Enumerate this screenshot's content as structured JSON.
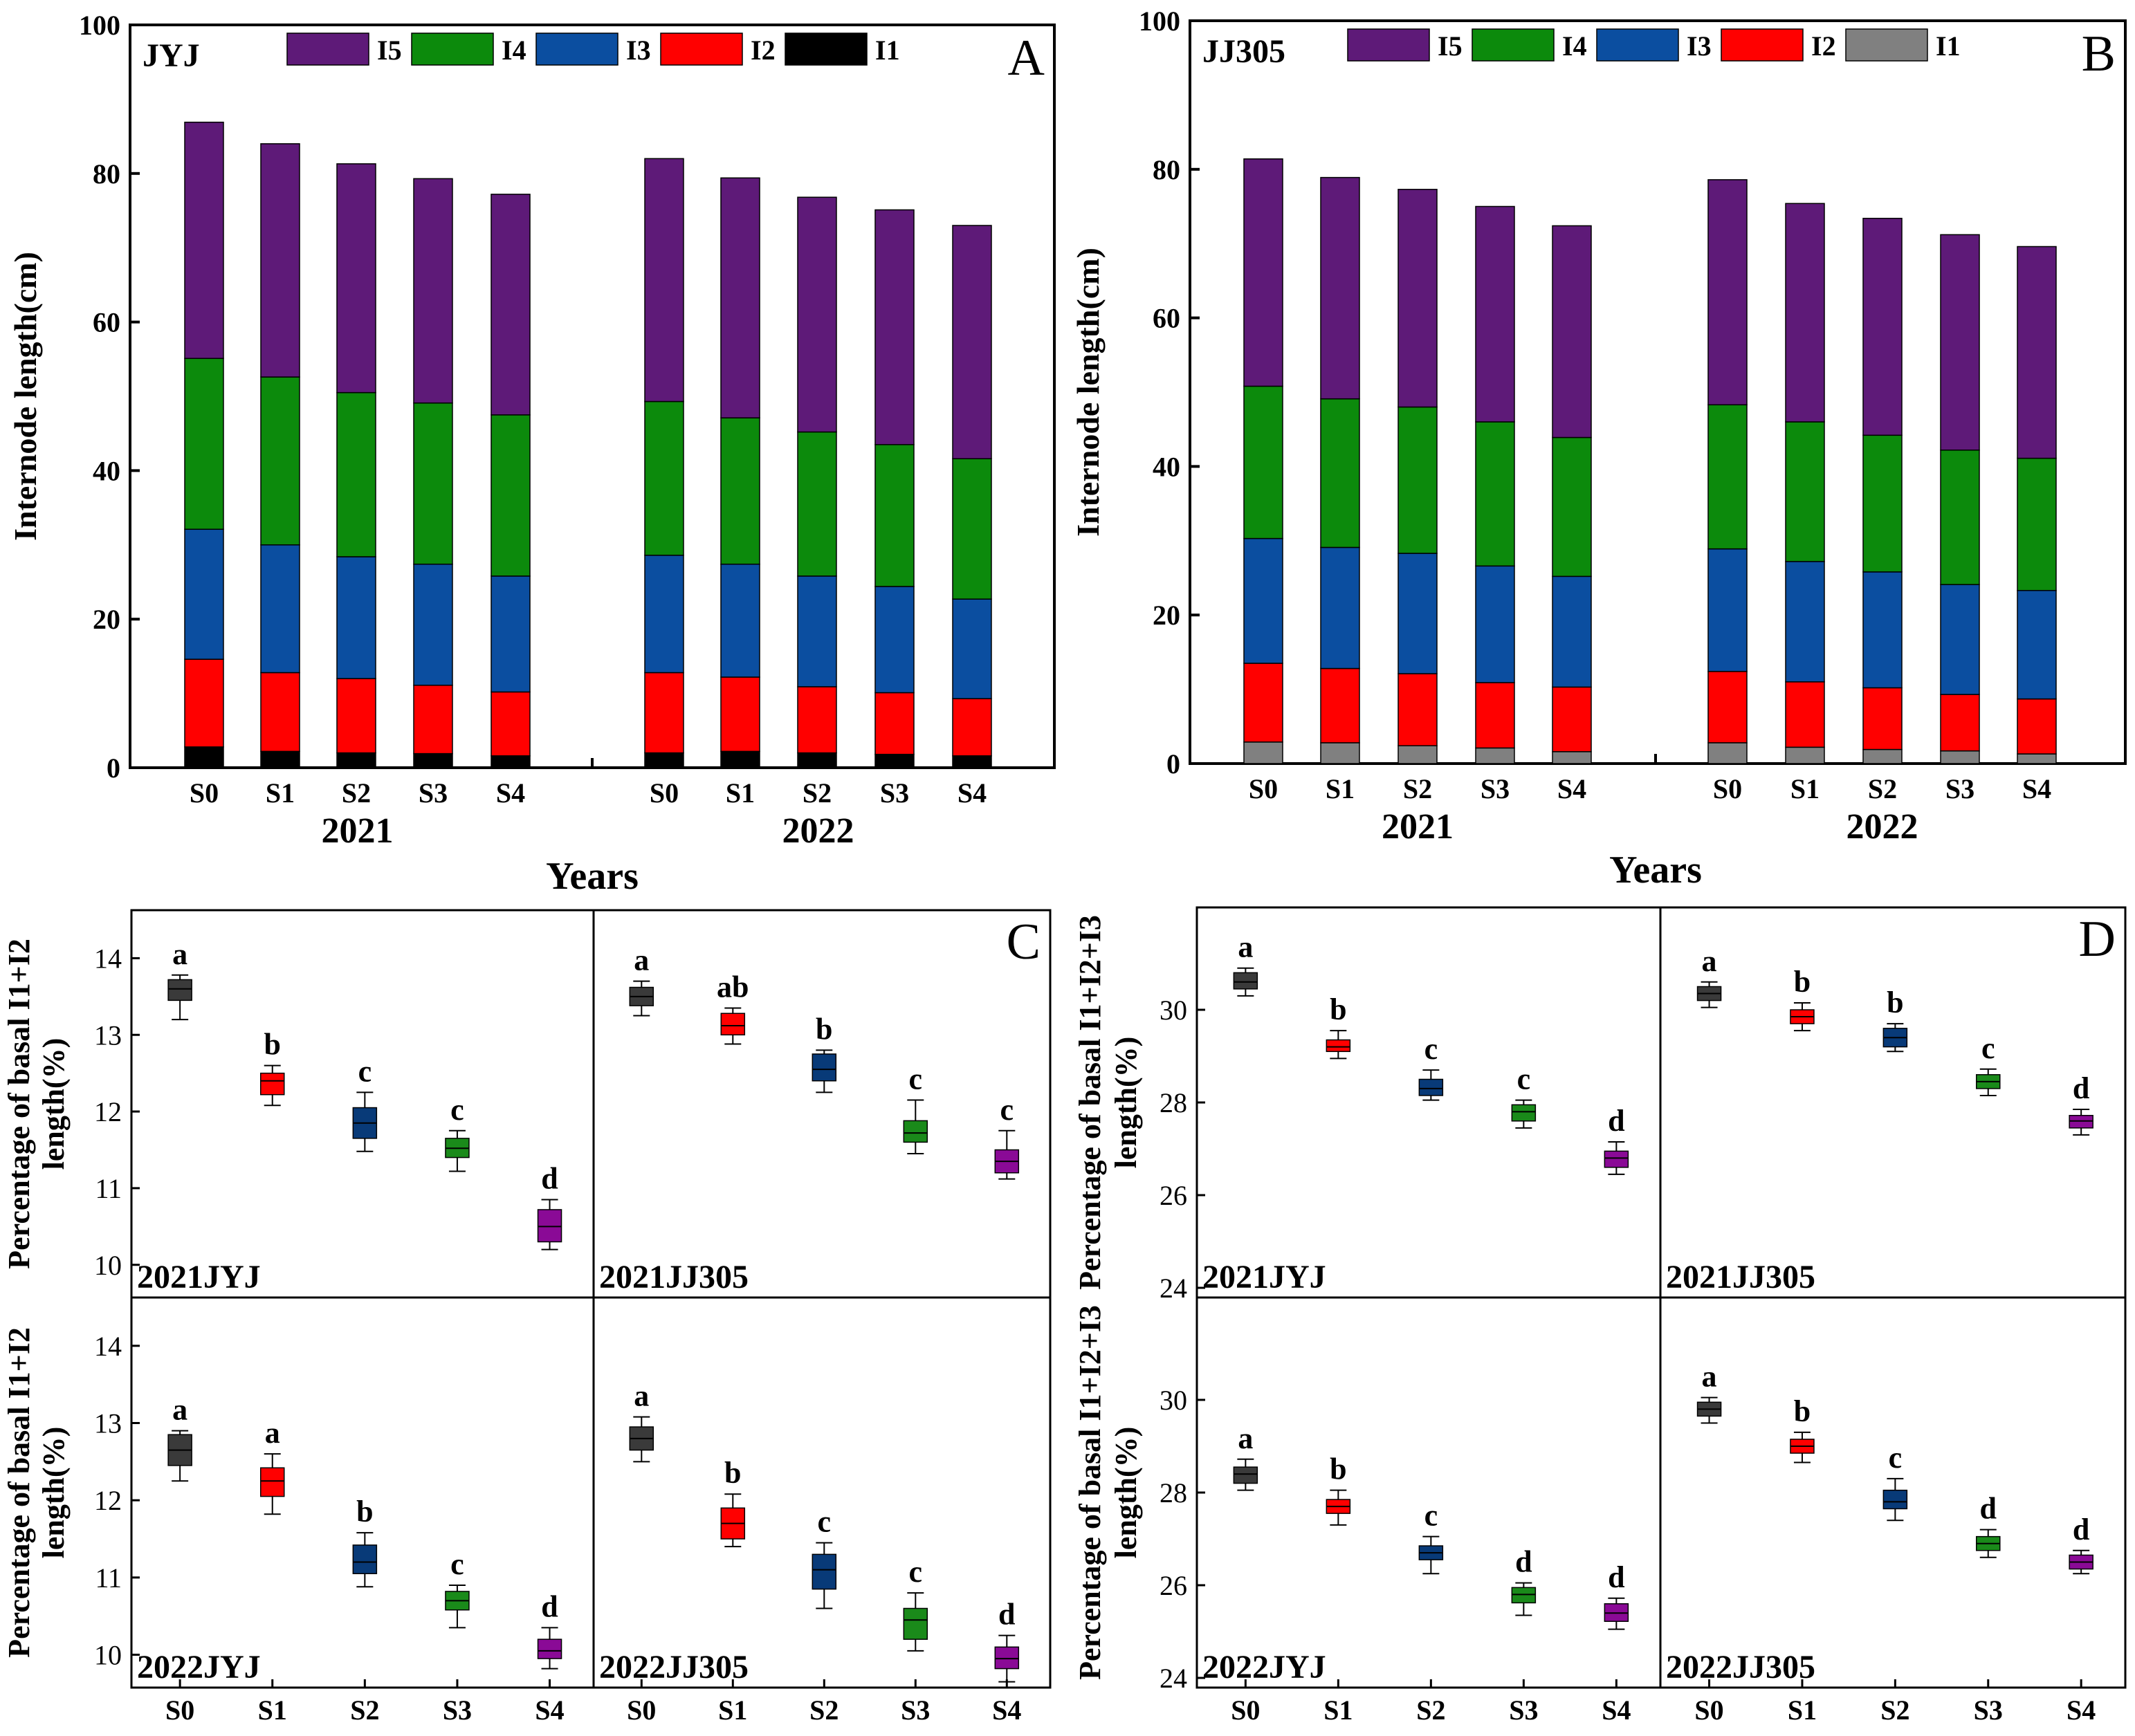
{
  "colors": {
    "I5": "#5e1a78",
    "I4": "#0c8a0c",
    "I3": "#0b4ea0",
    "I2": "#ff0000",
    "I1_A": "#000000",
    "I1_B": "#808080",
    "S0": "#3a3a3a",
    "S1": "#ff0000",
    "S2": "#083a78",
    "S3": "#1a8a1a",
    "S4": "#8a0a96"
  },
  "chart_data": [
    {
      "panel": "A",
      "type": "bar",
      "stacked": true,
      "tag": "JYJ",
      "ylabel": "Internode length(cm)",
      "xlabel": "Years",
      "ylim": [
        0,
        100
      ],
      "yticks": [
        "0",
        "20",
        "40",
        "60",
        "80",
        "100"
      ],
      "groups": [
        "2021",
        "2022"
      ],
      "categories": [
        "S0",
        "S1",
        "S2",
        "S3",
        "S4"
      ],
      "legend": [
        "I5",
        "I4",
        "I3",
        "I2",
        "I1"
      ],
      "series": [
        {
          "name": "I1",
          "values": [
            [
              2.8,
              2.2,
              2.0,
              1.9,
              1.6
            ],
            [
              2.0,
              2.2,
              2.0,
              1.8,
              1.6
            ]
          ]
        },
        {
          "name": "I2",
          "values": [
            [
              11.8,
              10.6,
              10.0,
              9.2,
              8.6
            ],
            [
              10.8,
              10.0,
              8.9,
              8.3,
              7.7
            ]
          ]
        },
        {
          "name": "I3",
          "values": [
            [
              17.5,
              17.2,
              16.4,
              16.3,
              15.6
            ],
            [
              15.8,
              15.2,
              14.9,
              14.3,
              13.4
            ]
          ]
        },
        {
          "name": "I4",
          "values": [
            [
              23.0,
              22.6,
              22.1,
              21.7,
              21.7
            ],
            [
              20.7,
              19.7,
              19.4,
              19.1,
              18.9
            ]
          ]
        },
        {
          "name": "I5",
          "values": [
            [
              31.8,
              31.4,
              30.8,
              30.2,
              29.7
            ],
            [
              32.7,
              32.3,
              31.6,
              31.6,
              31.4
            ]
          ]
        }
      ]
    },
    {
      "panel": "B",
      "type": "bar",
      "stacked": true,
      "tag": "JJ305",
      "ylabel": "Internode length(cm)",
      "xlabel": "Years",
      "ylim": [
        0,
        100
      ],
      "yticks": [
        "0",
        "20",
        "40",
        "60",
        "80",
        "100"
      ],
      "groups": [
        "2021",
        "2022"
      ],
      "categories": [
        "S0",
        "S1",
        "S2",
        "S3",
        "S4"
      ],
      "legend": [
        "I5",
        "I4",
        "I3",
        "I2",
        "I1"
      ],
      "series": [
        {
          "name": "I1",
          "values": [
            [
              2.9,
              2.8,
              2.4,
              2.1,
              1.6
            ],
            [
              2.8,
              2.2,
              1.9,
              1.7,
              1.3
            ]
          ]
        },
        {
          "name": "I2",
          "values": [
            [
              10.6,
              10.0,
              9.7,
              8.8,
              8.7
            ],
            [
              9.6,
              8.8,
              8.3,
              7.6,
              7.4
            ]
          ]
        },
        {
          "name": "I3",
          "values": [
            [
              16.8,
              16.3,
              16.2,
              15.7,
              14.9
            ],
            [
              16.5,
              16.2,
              15.6,
              14.8,
              14.6
            ]
          ]
        },
        {
          "name": "I4",
          "values": [
            [
              20.5,
              20.0,
              19.7,
              19.4,
              18.7
            ],
            [
              19.4,
              18.8,
              18.4,
              18.1,
              17.8
            ]
          ]
        },
        {
          "name": "I5",
          "values": [
            [
              30.6,
              29.8,
              29.3,
              29.0,
              28.5
            ],
            [
              30.3,
              29.4,
              29.2,
              29.0,
              28.5
            ]
          ]
        }
      ]
    },
    {
      "panel": "C",
      "type": "box",
      "ylabel": "Percentage of basal I1+I2 length(%)",
      "ylim": [
        9.7,
        14.5
      ],
      "yticks": [
        10,
        11,
        12,
        13,
        14
      ],
      "categories": [
        "S0",
        "S1",
        "S2",
        "S3",
        "S4"
      ],
      "subplots": [
        {
          "label": "2021JYJ",
          "medians": [
            13.6,
            12.4,
            11.85,
            11.52,
            10.5
          ],
          "q1": [
            13.45,
            12.22,
            11.65,
            11.4,
            10.3
          ],
          "q3": [
            13.72,
            12.5,
            12.05,
            11.65,
            10.72
          ],
          "min": [
            13.2,
            12.08,
            11.48,
            11.22,
            10.2
          ],
          "max": [
            13.78,
            12.6,
            12.25,
            11.75,
            10.85
          ],
          "letters": [
            "a",
            "b",
            "c",
            "c",
            "d"
          ]
        },
        {
          "label": "2021JJ305",
          "medians": [
            13.5,
            13.12,
            12.55,
            11.72,
            11.35
          ],
          "q1": [
            13.38,
            13.0,
            12.4,
            11.6,
            11.2
          ],
          "q3": [
            13.62,
            13.28,
            12.75,
            11.88,
            11.5
          ],
          "min": [
            13.25,
            12.88,
            12.25,
            11.45,
            11.12
          ],
          "max": [
            13.7,
            13.35,
            12.8,
            12.15,
            11.75
          ],
          "letters": [
            "a",
            "ab",
            "b",
            "c",
            "c"
          ]
        },
        {
          "label": "2022JYJ",
          "medians": [
            12.65,
            12.25,
            11.2,
            10.7,
            10.05
          ],
          "q1": [
            12.45,
            12.05,
            11.05,
            10.58,
            9.95
          ],
          "q3": [
            12.85,
            12.42,
            11.42,
            10.82,
            10.2
          ],
          "min": [
            12.25,
            11.82,
            10.88,
            10.35,
            9.82
          ],
          "max": [
            12.9,
            12.6,
            11.58,
            10.9,
            10.35
          ],
          "letters": [
            "a",
            "a",
            "b",
            "c",
            "d"
          ]
        },
        {
          "label": "2022JJ305",
          "medians": [
            12.8,
            11.7,
            11.1,
            10.45,
            9.95
          ],
          "q1": [
            12.65,
            11.5,
            10.85,
            10.2,
            9.82
          ],
          "q3": [
            12.95,
            11.9,
            11.3,
            10.6,
            10.1
          ],
          "min": [
            12.5,
            11.4,
            10.6,
            10.05,
            9.65
          ],
          "max": [
            13.08,
            12.08,
            11.45,
            10.8,
            10.25
          ],
          "letters": [
            "a",
            "b",
            "c",
            "c",
            "d"
          ]
        }
      ]
    },
    {
      "panel": "D",
      "type": "box",
      "ylabel": "Percentage of basal I1+I2+I3 length(%)",
      "ylim": [
        24,
        32
      ],
      "yticks": [
        24,
        26,
        28,
        30
      ],
      "categories": [
        "S0",
        "S1",
        "S2",
        "S3",
        "S4"
      ],
      "subplots": [
        {
          "label": "2021JYJ",
          "medians": [
            30.6,
            29.2,
            28.3,
            27.8,
            26.8
          ],
          "q1": [
            30.45,
            29.1,
            28.15,
            27.6,
            26.6
          ],
          "q3": [
            30.8,
            29.35,
            28.5,
            27.95,
            26.95
          ],
          "min": [
            30.3,
            28.95,
            28.05,
            27.45,
            26.45
          ],
          "max": [
            30.9,
            29.55,
            28.7,
            28.05,
            27.15
          ],
          "letters": [
            "a",
            "b",
            "c",
            "c",
            "d"
          ]
        },
        {
          "label": "2021JJ305",
          "medians": [
            30.35,
            29.85,
            29.4,
            28.45,
            27.6
          ],
          "q1": [
            30.2,
            29.7,
            29.2,
            28.3,
            27.45
          ],
          "q3": [
            30.5,
            30.0,
            29.6,
            28.6,
            27.72
          ],
          "min": [
            30.05,
            29.55,
            29.1,
            28.15,
            27.3
          ],
          "max": [
            30.6,
            30.15,
            29.7,
            28.72,
            27.85
          ],
          "letters": [
            "a",
            "b",
            "b",
            "c",
            "d"
          ]
        },
        {
          "label": "2022JYJ",
          "medians": [
            28.4,
            27.7,
            26.7,
            25.8,
            25.4
          ],
          "q1": [
            28.2,
            27.55,
            26.55,
            25.62,
            25.22
          ],
          "q3": [
            28.55,
            27.85,
            26.85,
            25.95,
            25.6
          ],
          "min": [
            28.05,
            27.3,
            26.25,
            25.35,
            25.05
          ],
          "max": [
            28.72,
            28.05,
            27.05,
            26.05,
            25.72
          ],
          "letters": [
            "a",
            "b",
            "c",
            "d",
            "d"
          ]
        },
        {
          "label": "2022JJ305",
          "medians": [
            29.8,
            29.0,
            27.8,
            26.9,
            26.5
          ],
          "q1": [
            29.65,
            28.85,
            27.65,
            26.75,
            26.35
          ],
          "q3": [
            29.95,
            29.15,
            28.05,
            27.05,
            26.65
          ],
          "min": [
            29.5,
            28.65,
            27.4,
            26.6,
            26.25
          ],
          "max": [
            30.05,
            29.3,
            28.3,
            27.2,
            26.75
          ],
          "letters": [
            "a",
            "b",
            "c",
            "d",
            "d"
          ]
        }
      ]
    }
  ]
}
